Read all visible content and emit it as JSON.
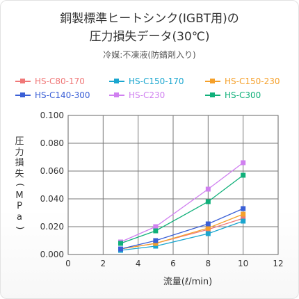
{
  "header": {
    "title_line1": "銅製標準ヒートシンク(IGBT用)の",
    "title_line2": "圧力損失データ(30℃)",
    "subtitle": "冷媒:不凍液(防錆剤入り)"
  },
  "chart_data": {
    "type": "line",
    "xlabel": "流量(ℓ/min)",
    "ylabel": "圧力損失(MPa)",
    "xlim": [
      0,
      12
    ],
    "ylim": [
      0,
      0.1
    ],
    "x_ticks": [
      "0",
      "2",
      "4",
      "6",
      "8",
      "10",
      "12"
    ],
    "y_ticks": [
      "0.000",
      "0.020",
      "0.040",
      "0.060",
      "0.080",
      "0.100"
    ],
    "grid": true,
    "legend_position": "top",
    "x": [
      3,
      5,
      8,
      10
    ],
    "series": [
      {
        "name": "HS-C80-170",
        "color": "#f07878",
        "values": [
          0.004,
          0.008,
          0.018,
          0.026
        ]
      },
      {
        "name": "HS-C150-170",
        "color": "#1aa6cf",
        "values": [
          0.003,
          0.006,
          0.015,
          0.024
        ]
      },
      {
        "name": "HS-C150-230",
        "color": "#f5a02a",
        "values": [
          0.004,
          0.008,
          0.019,
          0.029
        ]
      },
      {
        "name": "HS-C140-300",
        "color": "#3a5fd6",
        "values": [
          0.004,
          0.01,
          0.022,
          0.033
        ]
      },
      {
        "name": "HS-C230",
        "color": "#d080f0",
        "values": [
          0.009,
          0.02,
          0.047,
          0.066
        ]
      },
      {
        "name": "HS-C300",
        "color": "#10b07a",
        "values": [
          0.008,
          0.017,
          0.038,
          0.057
        ]
      }
    ]
  }
}
